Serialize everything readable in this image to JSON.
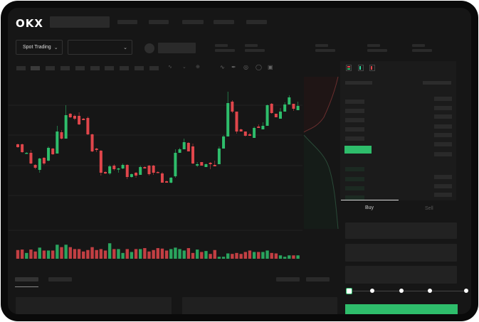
{
  "header": {
    "logo": "OKX"
  },
  "toolbar": {
    "market_selector": "Spot Trading"
  },
  "trade_form": {
    "tabs": [
      {
        "label": "Buy",
        "active": true
      },
      {
        "label": "Sell",
        "active": false
      }
    ],
    "slider_percent": 0
  },
  "colors": {
    "up": "#2ebd6b",
    "down": "#e0464b",
    "background": "#161616",
    "panel": "#1b1b1b"
  },
  "icons": [
    "chevron-down-icon",
    "orderbook-both-icon",
    "orderbook-bids-icon",
    "orderbook-asks-icon"
  ],
  "chart_data": {
    "type": "candlestick",
    "ohlc": [
      [
        97,
        98,
        92,
        93
      ],
      [
        97,
        98,
        85,
        86
      ],
      [
        84,
        86,
        84,
        85
      ],
      [
        85,
        89,
        69,
        70
      ],
      [
        68,
        69,
        62,
        64
      ],
      [
        61,
        78,
        57,
        77
      ],
      [
        78,
        79,
        68,
        70
      ],
      [
        74,
        94,
        73,
        92
      ],
      [
        91,
        92,
        82,
        83
      ],
      [
        84,
        123,
        84,
        115
      ],
      [
        114,
        117,
        104,
        105
      ],
      [
        105,
        152,
        105,
        138
      ],
      [
        140,
        141,
        134,
        135
      ],
      [
        137,
        139,
        131,
        133
      ],
      [
        137,
        142,
        124,
        125
      ],
      [
        133,
        134,
        131,
        131
      ],
      [
        134,
        136,
        110,
        111
      ],
      [
        111,
        112,
        86,
        87
      ],
      [
        91,
        92,
        86,
        89
      ],
      [
        88,
        89,
        53,
        57
      ],
      [
        58,
        59,
        55,
        56
      ],
      [
        56,
        68,
        54,
        66
      ],
      [
        67,
        69,
        60,
        62
      ],
      [
        62,
        64,
        57,
        63
      ],
      [
        63,
        70,
        62,
        68
      ],
      [
        68,
        69,
        48,
        51
      ],
      [
        51,
        56,
        50,
        55
      ],
      [
        57,
        58,
        50,
        53
      ],
      [
        54,
        67,
        54,
        65
      ],
      [
        65,
        66,
        63,
        63
      ],
      [
        67,
        68,
        53,
        55
      ],
      [
        67,
        68,
        54,
        57
      ],
      [
        58,
        59,
        57,
        57
      ],
      [
        56,
        58,
        43,
        43
      ],
      [
        45,
        46,
        43,
        43
      ],
      [
        43,
        51,
        42,
        50
      ],
      [
        52,
        90,
        50,
        85
      ],
      [
        85,
        92,
        85,
        90
      ],
      [
        90,
        105,
        90,
        100
      ],
      [
        99,
        100,
        87,
        87
      ],
      [
        94,
        98,
        69,
        70
      ],
      [
        67,
        72,
        65,
        69
      ],
      [
        72,
        72,
        67,
        67
      ],
      [
        65,
        70,
        65,
        69
      ],
      [
        71,
        72,
        62,
        69
      ],
      [
        68,
        74,
        66,
        66
      ],
      [
        69,
        94,
        69,
        91
      ],
      [
        91,
        110,
        91,
        108
      ],
      [
        108,
        171,
        108,
        155
      ],
      [
        157,
        159,
        141,
        143
      ],
      [
        143,
        143,
        112,
        115
      ],
      [
        118,
        119,
        115,
        115
      ],
      [
        115,
        115,
        108,
        109
      ],
      [
        111,
        113,
        109,
        109
      ],
      [
        106,
        122,
        106,
        120
      ],
      [
        122,
        125,
        120,
        120
      ],
      [
        118,
        128,
        118,
        123
      ],
      [
        123,
        153,
        123,
        152
      ],
      [
        154,
        155,
        140,
        141
      ],
      [
        140,
        140,
        135,
        135
      ],
      [
        133,
        148,
        133,
        143
      ],
      [
        143,
        156,
        143,
        153
      ],
      [
        153,
        166,
        153,
        163
      ],
      [
        154,
        154,
        144,
        147
      ],
      [
        145,
        157,
        145,
        151
      ]
    ],
    "volume": [
      36,
      38,
      24,
      38,
      30,
      46,
      34,
      34,
      34,
      58,
      48,
      58,
      48,
      40,
      40,
      30,
      36,
      48,
      36,
      40,
      34,
      64,
      40,
      40,
      24,
      40,
      28,
      40,
      40,
      44,
      30,
      36,
      44,
      42,
      34,
      40,
      46,
      40,
      34,
      44,
      24,
      38,
      28,
      32,
      20,
      36,
      8,
      8,
      22,
      20,
      24,
      20,
      28,
      34,
      28,
      28,
      28,
      34,
      24,
      22,
      14,
      8,
      14,
      14,
      14
    ]
  }
}
